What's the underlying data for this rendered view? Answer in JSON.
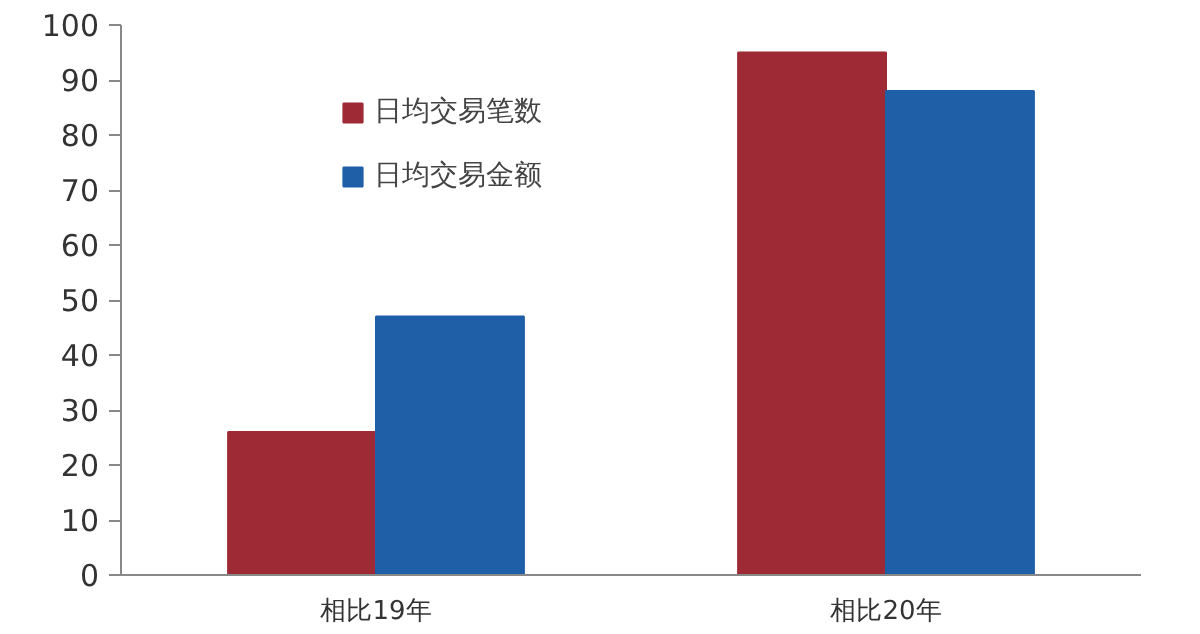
{
  "chart_data": {
    "type": "bar",
    "categories": [
      "相比19年",
      "相比20年"
    ],
    "series": [
      {
        "name": "日均交易笔数",
        "color": "#9e2a36",
        "values": [
          26,
          95
        ]
      },
      {
        "name": "日均交易金额",
        "color": "#1f5fa8",
        "values": [
          47,
          88
        ]
      }
    ],
    "ylim": [
      0,
      100
    ],
    "yticks": [
      0,
      10,
      20,
      30,
      40,
      50,
      60,
      70,
      80,
      90,
      100
    ],
    "grid": false,
    "legend": "top left"
  }
}
